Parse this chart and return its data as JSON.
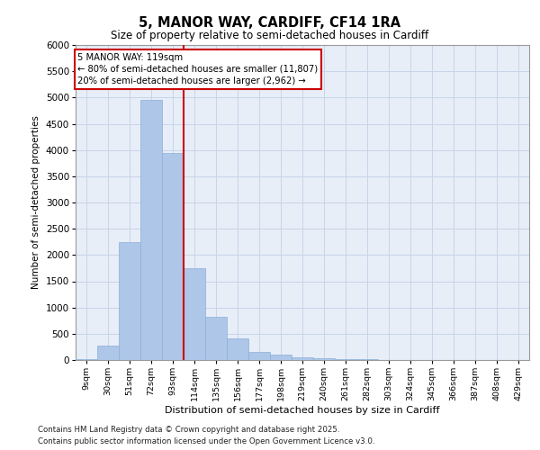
{
  "title": "5, MANOR WAY, CARDIFF, CF14 1RA",
  "subtitle": "Size of property relative to semi-detached houses in Cardiff",
  "xlabel": "Distribution of semi-detached houses by size in Cardiff",
  "ylabel": "Number of semi-detached properties",
  "footnote1": "Contains HM Land Registry data © Crown copyright and database right 2025.",
  "footnote2": "Contains public sector information licensed under the Open Government Licence v3.0.",
  "property_label": "5 MANOR WAY: 119sqm",
  "annotation_line1": "← 80% of semi-detached houses are smaller (11,807)",
  "annotation_line2": "20% of semi-detached houses are larger (2,962) →",
  "categories": [
    "9sqm",
    "30sqm",
    "51sqm",
    "72sqm",
    "93sqm",
    "114sqm",
    "135sqm",
    "156sqm",
    "177sqm",
    "198sqm",
    "219sqm",
    "240sqm",
    "261sqm",
    "282sqm",
    "303sqm",
    "324sqm",
    "345sqm",
    "366sqm",
    "387sqm",
    "408sqm",
    "429sqm"
  ],
  "values": [
    25,
    280,
    2250,
    4950,
    3950,
    1750,
    820,
    420,
    155,
    100,
    55,
    35,
    15,
    10,
    5,
    4,
    2,
    1,
    1,
    0,
    0
  ],
  "bar_color": "#aec6e8",
  "bar_edge_color": "#8ab0d8",
  "red_line_color": "#cc0000",
  "grid_color": "#c8d4e8",
  "background_color": "#e8eef8",
  "ylim": [
    0,
    6000
  ],
  "yticks": [
    0,
    500,
    1000,
    1500,
    2000,
    2500,
    3000,
    3500,
    4000,
    4500,
    5000,
    5500,
    6000
  ],
  "red_line_index": 5
}
